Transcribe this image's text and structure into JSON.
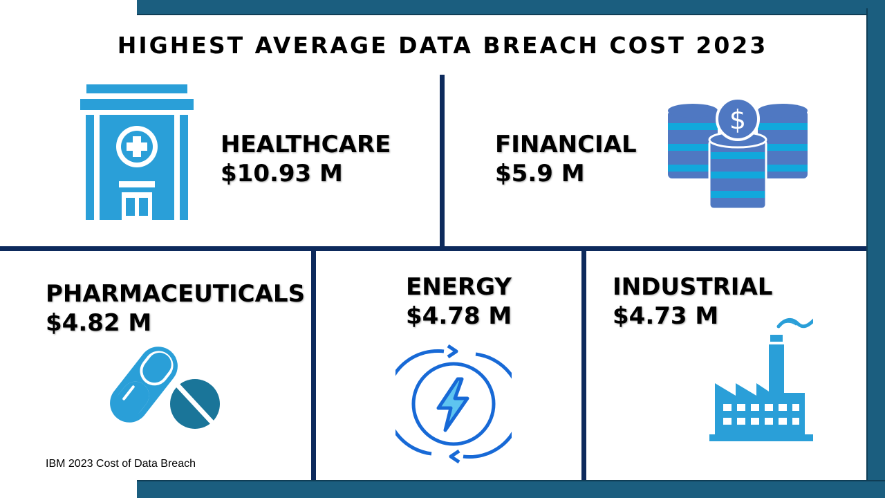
{
  "title": "HIGHEST AVERAGE DATA BREACH COST 2023",
  "industries": [
    {
      "name": "HEALTHCARE",
      "cost": "$10.93 M",
      "icon": "hospital-icon"
    },
    {
      "name": "FINANCIAL",
      "cost": "$5.9 M",
      "icon": "money-stack-icon"
    },
    {
      "name": "PHARMACEUTICALS",
      "cost": "$4.82 M",
      "icon": "pills-icon"
    },
    {
      "name": "ENERGY",
      "cost": "$4.78 M",
      "icon": "energy-icon"
    },
    {
      "name": "INDUSTRIAL",
      "cost": "$4.73 M",
      "icon": "factory-icon"
    }
  ],
  "source": "IBM 2023 Cost of Data Breach",
  "colors": {
    "frame": "#1b5e7f",
    "divider": "#0d2a5c",
    "icon_blue": "#2a9fd8",
    "icon_dark": "#1a7599",
    "coin_blue": "#4f78c2",
    "coin_cyan": "#11a8dc",
    "energy_blue": "#1769d6"
  }
}
